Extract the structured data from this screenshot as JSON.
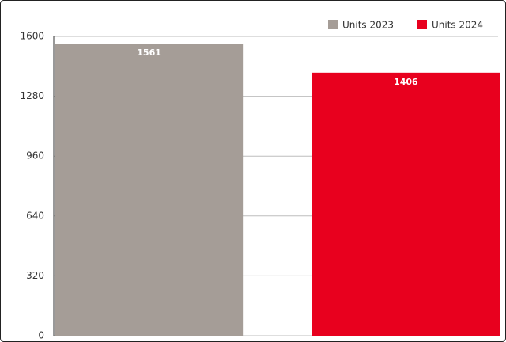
{
  "chart_data": {
    "type": "bar",
    "categories": [
      null
    ],
    "series": [
      {
        "name": "Units 2023",
        "color": "#a59d97",
        "values": [
          1561
        ]
      },
      {
        "name": "Units 2024",
        "color": "#e8001e",
        "values": [
          1406
        ]
      }
    ],
    "ylim": [
      0,
      1600
    ],
    "yticks": [
      0,
      320,
      640,
      960,
      1280,
      1600
    ],
    "grid": true,
    "legend": "top-right"
  }
}
